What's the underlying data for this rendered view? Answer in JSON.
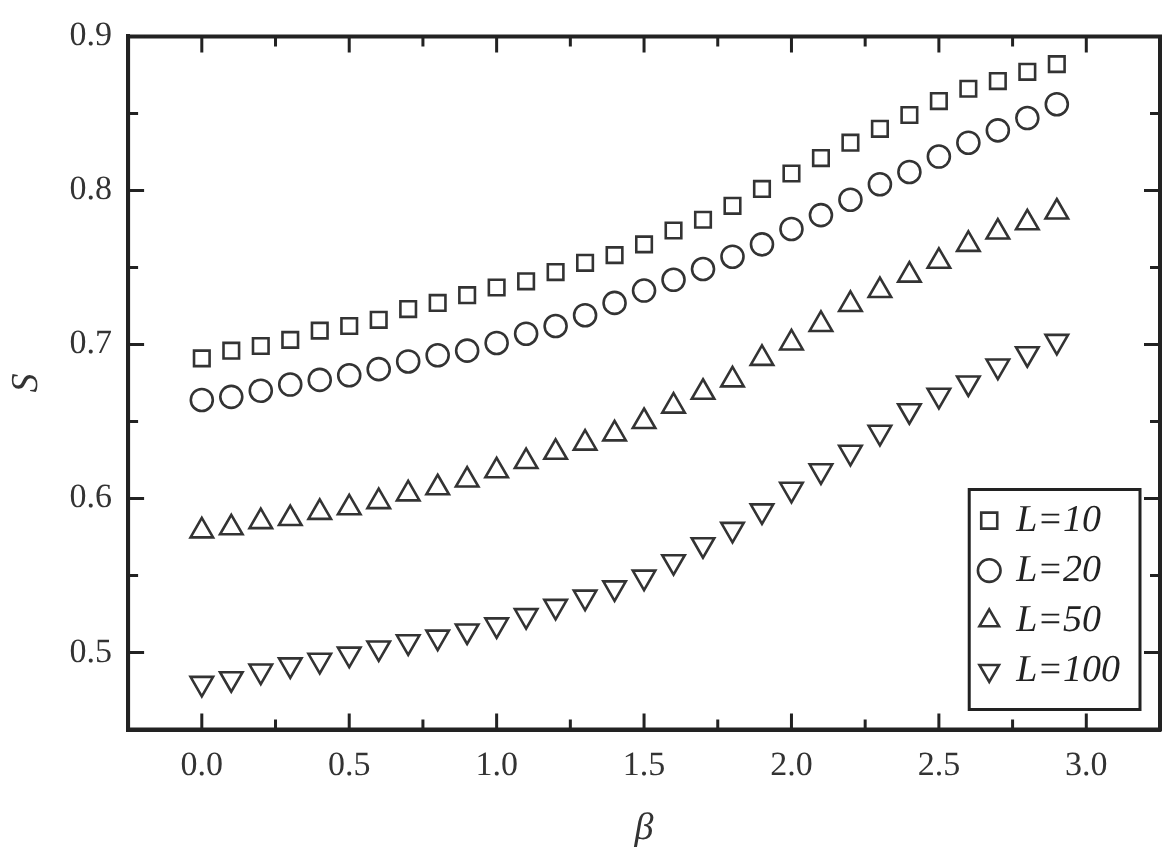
{
  "chart_data": {
    "type": "scatter",
    "xlabel": "β",
    "ylabel": "S",
    "xlim": [
      -0.25,
      3.25
    ],
    "ylim": [
      0.45,
      0.9
    ],
    "xticks": [
      {
        "value": 0,
        "label": "0.0"
      },
      0.5,
      {
        "value": 1,
        "label": "1.0"
      },
      1.5,
      {
        "value": 2,
        "label": "2.0"
      },
      2.5,
      {
        "value": 3,
        "label": "3.0"
      }
    ],
    "yticks": [
      0.5,
      0.6,
      0.7,
      0.8,
      0.9
    ],
    "grid": false,
    "legend": "bottom right",
    "x": [
      0,
      0.1,
      0.2,
      0.3,
      0.4,
      0.5,
      0.6,
      0.7,
      0.8,
      0.9,
      1.0,
      1.1,
      1.2,
      1.3,
      1.4,
      1.5,
      1.6,
      1.7,
      1.8,
      1.9,
      2.0,
      2.1,
      2.2,
      2.3,
      2.4,
      2.5,
      2.6,
      2.7,
      2.8,
      2.9
    ],
    "series": [
      {
        "name": "L=10",
        "color": "#333333",
        "marker": "square",
        "values": [
          0.691,
          0.696,
          0.699,
          0.703,
          0.709,
          0.712,
          0.716,
          0.723,
          0.727,
          0.732,
          0.737,
          0.741,
          0.747,
          0.753,
          0.758,
          0.765,
          0.774,
          0.781,
          0.79,
          0.801,
          0.811,
          0.821,
          0.831,
          0.84,
          0.849,
          0.858,
          0.866,
          0.871,
          0.877,
          0.882
        ]
      },
      {
        "name": "L=20",
        "color": "#333333",
        "marker": "circle",
        "values": [
          0.664,
          0.666,
          0.67,
          0.674,
          0.677,
          0.68,
          0.684,
          0.689,
          0.693,
          0.696,
          0.701,
          0.707,
          0.712,
          0.719,
          0.727,
          0.735,
          0.742,
          0.749,
          0.757,
          0.765,
          0.775,
          0.784,
          0.794,
          0.804,
          0.812,
          0.822,
          0.831,
          0.839,
          0.847,
          0.856
        ]
      },
      {
        "name": "L=50",
        "color": "#333333",
        "marker": "triangle",
        "values": [
          0.579,
          0.581,
          0.585,
          0.587,
          0.591,
          0.594,
          0.598,
          0.603,
          0.607,
          0.612,
          0.618,
          0.624,
          0.63,
          0.636,
          0.642,
          0.65,
          0.66,
          0.669,
          0.677,
          0.691,
          0.701,
          0.713,
          0.726,
          0.735,
          0.745,
          0.754,
          0.765,
          0.773,
          0.779,
          0.786
        ]
      },
      {
        "name": "L=100",
        "color": "#333333",
        "marker": "triangle-down",
        "values": [
          0.48,
          0.483,
          0.488,
          0.492,
          0.495,
          0.499,
          0.503,
          0.507,
          0.51,
          0.514,
          0.518,
          0.524,
          0.53,
          0.536,
          0.542,
          0.549,
          0.559,
          0.57,
          0.58,
          0.592,
          0.606,
          0.618,
          0.63,
          0.643,
          0.657,
          0.667,
          0.675,
          0.686,
          0.694,
          0.702
        ]
      }
    ]
  }
}
